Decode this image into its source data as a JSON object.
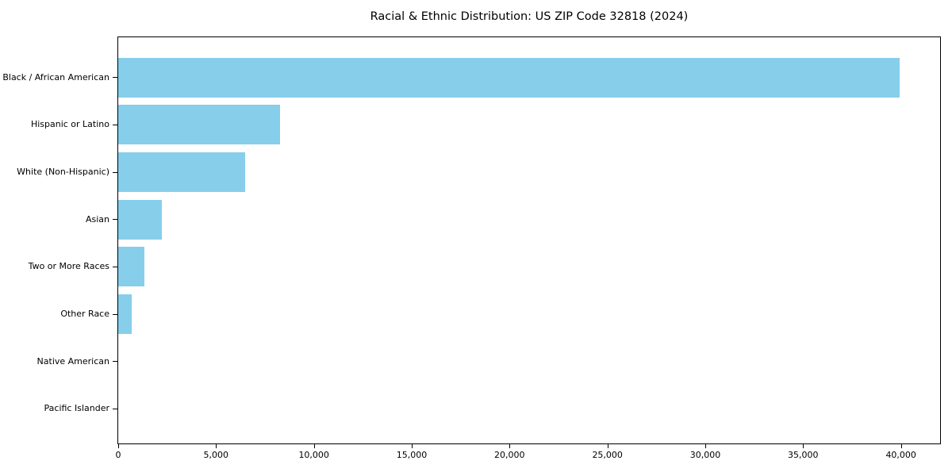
{
  "figure": {
    "background": "#ffffff"
  },
  "chart_data": {
    "type": "bar",
    "orientation": "horizontal",
    "title": "Racial & Ethnic Distribution: US ZIP Code 32818 (2024)",
    "categories": [
      "Black / African American",
      "Hispanic or Latino",
      "White (Non-Hispanic)",
      "Asian",
      "Two or More Races",
      "Other Race",
      "Native American",
      "Pacific Islander"
    ],
    "values": [
      39950,
      8250,
      6490,
      2240,
      1340,
      690,
      0,
      0
    ],
    "xlabel": "",
    "ylabel": "",
    "xlim": [
      0,
      42000
    ],
    "xticks": [
      0,
      5000,
      10000,
      15000,
      20000,
      25000,
      30000,
      35000,
      40000
    ],
    "xtick_labels": [
      "0",
      "5,000",
      "10,000",
      "15,000",
      "20,000",
      "25,000",
      "30,000",
      "35,000",
      "40,000"
    ],
    "bar_color": "#87CEEB",
    "axis_color": "#000000",
    "text_color": "#000000",
    "grid": false,
    "legend": null
  }
}
